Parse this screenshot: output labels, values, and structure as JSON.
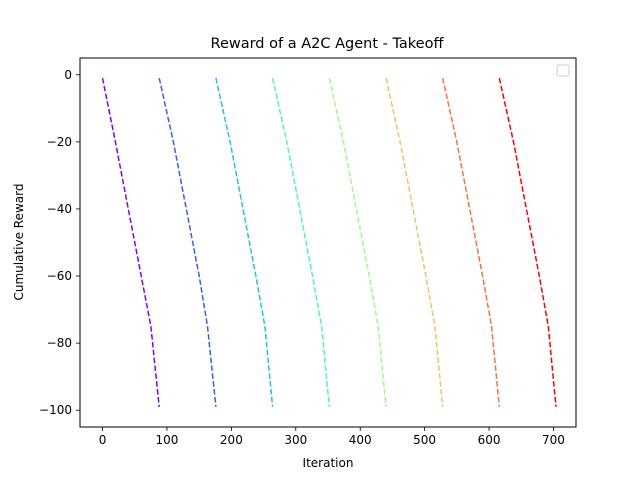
{
  "chart_data": {
    "type": "line",
    "title": "Reward of a A2C Agent - Takeoff",
    "xlabel": "Iteration",
    "ylabel": "Cumulative Reward",
    "xlim": [
      -35,
      735
    ],
    "ylim": [
      -105,
      5
    ],
    "xticks": [
      0,
      100,
      200,
      300,
      400,
      500,
      600,
      700
    ],
    "yticks": [
      0,
      -20,
      -40,
      -60,
      -80,
      -100
    ],
    "xtick_labels": [
      "0",
      "100",
      "200",
      "300",
      "400",
      "500",
      "600",
      "700"
    ],
    "ytick_labels": [
      "0",
      "−20",
      "−40",
      "−60",
      "−80",
      "−100"
    ],
    "grid": false,
    "legend": {
      "placement": "top-right",
      "entries": []
    },
    "line_style": "dashed",
    "series": [
      {
        "color": "#7f00ff",
        "x": [
          0,
          20,
          40,
          60,
          75,
          88
        ],
        "y": [
          -1,
          -20,
          -40,
          -60,
          -75,
          -99
        ]
      },
      {
        "color": "#3d5bf0",
        "x": [
          88,
          110,
          130,
          150,
          163,
          176
        ],
        "y": [
          -1,
          -20,
          -40,
          -60,
          -75,
          -99
        ]
      },
      {
        "color": "#1fc6d8",
        "x": [
          176,
          198,
          218,
          238,
          252,
          264
        ],
        "y": [
          -1,
          -20,
          -40,
          -60,
          -75,
          -99
        ]
      },
      {
        "color": "#4cf6c4",
        "x": [
          264,
          286,
          306,
          326,
          340,
          352
        ],
        "y": [
          -1,
          -20,
          -40,
          -60,
          -75,
          -99
        ]
      },
      {
        "color": "#a6f593",
        "x": [
          352,
          374,
          394,
          414,
          428,
          440
        ],
        "y": [
          -1,
          -20,
          -40,
          -60,
          -75,
          -99
        ]
      },
      {
        "color": "#ecc760",
        "x": [
          440,
          462,
          482,
          502,
          516,
          528
        ],
        "y": [
          -1,
          -20,
          -40,
          -60,
          -75,
          -99
        ]
      },
      {
        "color": "#ff6f3a",
        "x": [
          528,
          550,
          570,
          590,
          604,
          616
        ],
        "y": [
          -1,
          -20,
          -40,
          -60,
          -75,
          -99
        ]
      },
      {
        "color": "#ff0000",
        "x": [
          616,
          638,
          658,
          678,
          692,
          704
        ],
        "y": [
          -1,
          -20,
          -40,
          -60,
          -75,
          -99
        ]
      }
    ]
  }
}
